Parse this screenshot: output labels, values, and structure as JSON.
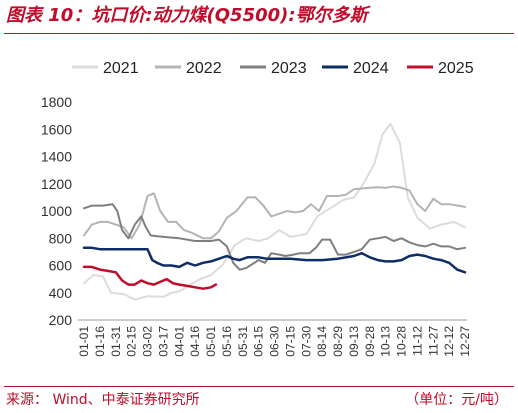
{
  "title": "图表 10：坑口价:动力煤(Q5500):鄂尔多斯",
  "source": "来源：  Wind、中泰证券研究所",
  "unit": "（单位：元/吨）",
  "chart_data": {
    "type": "line",
    "x": [
      "01-01",
      "01-16",
      "01-31",
      "02-15",
      "03-02",
      "03-17",
      "04-01",
      "04-16",
      "05-01",
      "05-16",
      "05-31",
      "06-15",
      "06-30",
      "07-15",
      "07-30",
      "08-14",
      "08-29",
      "09-13",
      "09-28",
      "10-13",
      "10-28",
      "11-12",
      "11-27",
      "12-12",
      "12-27"
    ],
    "ylim": [
      200,
      1800
    ],
    "yticks": [
      200,
      400,
      600,
      800,
      1000,
      1200,
      1400,
      1600,
      1800
    ],
    "legend_position": "top",
    "grid": false,
    "series": [
      {
        "name": "2021",
        "color": "#dcdcdc",
        "width": 2,
        "points": [
          [
            0,
            470
          ],
          [
            0.6,
            530
          ],
          [
            1.2,
            520
          ],
          [
            1.7,
            400
          ],
          [
            2.5,
            390
          ],
          [
            3.2,
            350
          ],
          [
            4,
            375
          ],
          [
            5,
            370
          ],
          [
            5.5,
            400
          ],
          [
            6,
            410
          ],
          [
            6.7,
            460
          ],
          [
            7.3,
            500
          ],
          [
            8,
            530
          ],
          [
            8.7,
            600
          ],
          [
            9.5,
            750
          ],
          [
            10.2,
            800
          ],
          [
            11,
            780
          ],
          [
            11.6,
            800
          ],
          [
            12.3,
            860
          ],
          [
            13,
            810
          ],
          [
            14,
            830
          ],
          [
            14.7,
            960
          ],
          [
            15.5,
            1020
          ],
          [
            16.3,
            1080
          ],
          [
            17,
            1100
          ],
          [
            17.6,
            1200
          ],
          [
            18.3,
            1350
          ],
          [
            18.8,
            1560
          ],
          [
            19.3,
            1640
          ],
          [
            19.9,
            1500
          ],
          [
            20.4,
            1100
          ],
          [
            21,
            950
          ],
          [
            21.8,
            870
          ],
          [
            22.5,
            900
          ],
          [
            23.3,
            920
          ],
          [
            24,
            880
          ]
        ]
      },
      {
        "name": "2022",
        "color": "#b4b4b4",
        "width": 2,
        "points": [
          [
            0,
            820
          ],
          [
            0.5,
            900
          ],
          [
            1,
            920
          ],
          [
            1.5,
            920
          ],
          [
            2,
            900
          ],
          [
            2.5,
            880
          ],
          [
            3,
            800
          ],
          [
            3.5,
            900
          ],
          [
            4,
            1110
          ],
          [
            4.4,
            1130
          ],
          [
            4.8,
            1000
          ],
          [
            5.3,
            920
          ],
          [
            5.8,
            920
          ],
          [
            6.3,
            860
          ],
          [
            6.8,
            840
          ],
          [
            7.5,
            800
          ],
          [
            8,
            800
          ],
          [
            8.5,
            850
          ],
          [
            9,
            950
          ],
          [
            9.6,
            1000
          ],
          [
            10.3,
            1100
          ],
          [
            10.8,
            1100
          ],
          [
            11.3,
            1040
          ],
          [
            11.8,
            960
          ],
          [
            12.3,
            980
          ],
          [
            12.8,
            1000
          ],
          [
            13.3,
            990
          ],
          [
            13.8,
            1000
          ],
          [
            14.3,
            1050
          ],
          [
            14.8,
            1000
          ],
          [
            15.3,
            1110
          ],
          [
            16,
            1110
          ],
          [
            16.5,
            1120
          ],
          [
            17,
            1160
          ],
          [
            17.5,
            1165
          ],
          [
            18,
            1170
          ],
          [
            18.5,
            1175
          ],
          [
            19,
            1170
          ],
          [
            19.5,
            1180
          ],
          [
            20,
            1170
          ],
          [
            20.5,
            1150
          ],
          [
            21,
            1050
          ],
          [
            21.5,
            1000
          ],
          [
            22,
            1090
          ],
          [
            22.5,
            1050
          ],
          [
            23,
            1050
          ],
          [
            24,
            1030
          ]
        ]
      },
      {
        "name": "2023",
        "color": "#7f7f7f",
        "width": 2,
        "points": [
          [
            0,
            1020
          ],
          [
            0.5,
            1040
          ],
          [
            1.2,
            1040
          ],
          [
            1.8,
            1050
          ],
          [
            2.1,
            1000
          ],
          [
            2.4,
            860
          ],
          [
            2.8,
            800
          ],
          [
            3.2,
            900
          ],
          [
            3.6,
            960
          ],
          [
            3.9,
            880
          ],
          [
            4.2,
            820
          ],
          [
            5,
            810
          ],
          [
            6,
            800
          ],
          [
            7,
            780
          ],
          [
            8,
            780
          ],
          [
            8.5,
            790
          ],
          [
            9,
            740
          ],
          [
            9.4,
            620
          ],
          [
            9.8,
            570
          ],
          [
            10.2,
            580
          ],
          [
            10.6,
            610
          ],
          [
            11,
            640
          ],
          [
            11.4,
            620
          ],
          [
            11.8,
            690
          ],
          [
            12.3,
            680
          ],
          [
            12.7,
            670
          ],
          [
            13.2,
            680
          ],
          [
            13.6,
            690
          ],
          [
            14.2,
            690
          ],
          [
            14.6,
            730
          ],
          [
            15,
            790
          ],
          [
            15.5,
            790
          ],
          [
            16,
            680
          ],
          [
            16.5,
            680
          ],
          [
            17,
            700
          ],
          [
            17.5,
            720
          ],
          [
            18,
            790
          ],
          [
            18.5,
            800
          ],
          [
            19,
            810
          ],
          [
            19.5,
            780
          ],
          [
            20,
            800
          ],
          [
            20.5,
            770
          ],
          [
            21,
            750
          ],
          [
            21.5,
            740
          ],
          [
            22,
            760
          ],
          [
            22.5,
            740
          ],
          [
            23,
            740
          ],
          [
            23.5,
            720
          ],
          [
            24,
            730
          ]
        ]
      },
      {
        "name": "2024",
        "color": "#0e2c66",
        "width": 2.5,
        "points": [
          [
            0,
            730
          ],
          [
            0.5,
            730
          ],
          [
            1,
            720
          ],
          [
            2,
            720
          ],
          [
            3,
            720
          ],
          [
            3.5,
            720
          ],
          [
            4,
            720
          ],
          [
            4.3,
            640
          ],
          [
            4.6,
            620
          ],
          [
            5,
            600
          ],
          [
            5.5,
            600
          ],
          [
            6,
            590
          ],
          [
            6.5,
            620
          ],
          [
            7,
            600
          ],
          [
            7.5,
            620
          ],
          [
            8,
            630
          ],
          [
            8.5,
            650
          ],
          [
            9,
            670
          ],
          [
            9.4,
            650
          ],
          [
            9.8,
            640
          ],
          [
            10.3,
            660
          ],
          [
            11,
            660
          ],
          [
            11.5,
            650
          ],
          [
            12,
            650
          ],
          [
            13,
            650
          ],
          [
            14,
            640
          ],
          [
            15,
            640
          ],
          [
            16,
            650
          ],
          [
            17,
            670
          ],
          [
            17.5,
            690
          ],
          [
            18,
            660
          ],
          [
            18.5,
            640
          ],
          [
            19,
            630
          ],
          [
            19.5,
            630
          ],
          [
            20,
            640
          ],
          [
            20.5,
            670
          ],
          [
            21,
            680
          ],
          [
            21.5,
            670
          ],
          [
            22,
            650
          ],
          [
            22.5,
            640
          ],
          [
            23,
            620
          ],
          [
            23.5,
            570
          ],
          [
            24,
            550
          ]
        ]
      },
      {
        "name": "2025",
        "color": "#c00d2b",
        "width": 2.5,
        "points": [
          [
            0,
            590
          ],
          [
            0.5,
            590
          ],
          [
            1,
            570
          ],
          [
            1.5,
            560
          ],
          [
            2,
            550
          ],
          [
            2.4,
            490
          ],
          [
            2.8,
            460
          ],
          [
            3.2,
            460
          ],
          [
            3.6,
            490
          ],
          [
            4,
            470
          ],
          [
            4.4,
            460
          ],
          [
            4.8,
            480
          ],
          [
            5.2,
            500
          ],
          [
            5.6,
            470
          ],
          [
            6,
            460
          ],
          [
            6.5,
            450
          ],
          [
            7,
            440
          ],
          [
            7.5,
            430
          ],
          [
            8,
            440
          ],
          [
            8.3,
            460
          ]
        ]
      }
    ]
  }
}
